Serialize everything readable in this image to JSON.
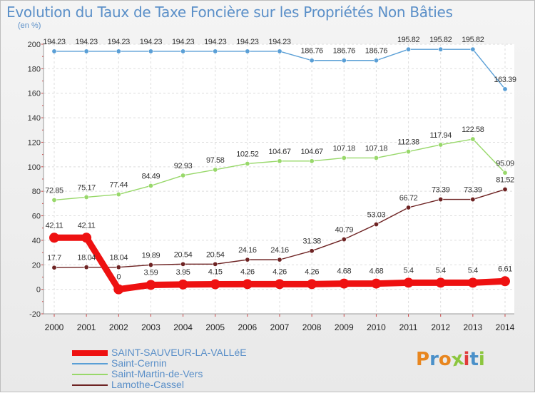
{
  "title": "Evolution du Taux de Taxe Foncière sur les Propriétés Non Bâties",
  "unit": "(en %)",
  "logo_text": "Proxiti",
  "chart_data": {
    "type": "line",
    "categories": [
      "2000",
      "2001",
      "2002",
      "2003",
      "2004",
      "2005",
      "2006",
      "2007",
      "2008",
      "2009",
      "2010",
      "2011",
      "2012",
      "2013",
      "2014"
    ],
    "ylim": [
      -20,
      200
    ],
    "yticks": [
      "-20",
      "0",
      "20",
      "40",
      "60",
      "80",
      "100",
      "120",
      "140",
      "160",
      "180",
      "200"
    ],
    "grid": true,
    "legend": "bottom-left",
    "series": [
      {
        "name": "SAINT-SAUVEUR-LA-VALLéE",
        "color": "#ee1111",
        "values": [
          42.11,
          42.11,
          0,
          3.59,
          3.95,
          4.15,
          4.26,
          4.26,
          4.26,
          4.68,
          4.68,
          5.4,
          5.4,
          5.4,
          6.61
        ],
        "labels": [
          "42.11",
          "42.11",
          "0",
          "3.59",
          "3.95",
          "4.15",
          "4.26",
          "4.26",
          "4.26",
          "4.68",
          "4.68",
          "5.4",
          "5.4",
          "5.4",
          "6.61"
        ]
      },
      {
        "name": "Saint-Cernin",
        "color": "#5a9fd6",
        "values": [
          194.23,
          194.23,
          194.23,
          194.23,
          194.23,
          194.23,
          194.23,
          194.23,
          186.76,
          186.76,
          186.76,
          195.82,
          195.82,
          195.82,
          163.39
        ],
        "labels": [
          "194.23",
          "194.23",
          "194.23",
          "194.23",
          "194.23",
          "194.23",
          "194.23",
          "194.23",
          "186.76",
          "186.76",
          "186.76",
          "195.82",
          "195.82",
          "195.82",
          "163.39"
        ]
      },
      {
        "name": "Saint-Martin-de-Vers",
        "color": "#98d86a",
        "values": [
          72.85,
          75.17,
          77.44,
          84.49,
          92.93,
          97.58,
          102.52,
          104.67,
          104.67,
          107.18,
          107.18,
          112.38,
          117.94,
          122.58,
          95.09
        ],
        "labels": [
          "72.85",
          "75.17",
          "77.44",
          "84.49",
          "92.93",
          "97.58",
          "102.52",
          "104.67",
          "104.67",
          "107.18",
          "107.18",
          "112.38",
          "117.94",
          "122.58",
          "95.09"
        ]
      },
      {
        "name": "Lamothe-Cassel",
        "color": "#6e2323",
        "values": [
          17.7,
          18.04,
          18.04,
          19.89,
          20.54,
          20.54,
          24.16,
          24.16,
          31.38,
          40.79,
          53.03,
          66.72,
          73.39,
          73.39,
          81.52
        ],
        "labels": [
          "17.7",
          "18.04",
          "18.04",
          "19.89",
          "20.54",
          "20.54",
          "24.16",
          "24.16",
          "31.38",
          "40.79",
          "53.03",
          "66.72",
          "73.39",
          "73.39",
          "81.52"
        ]
      }
    ]
  }
}
